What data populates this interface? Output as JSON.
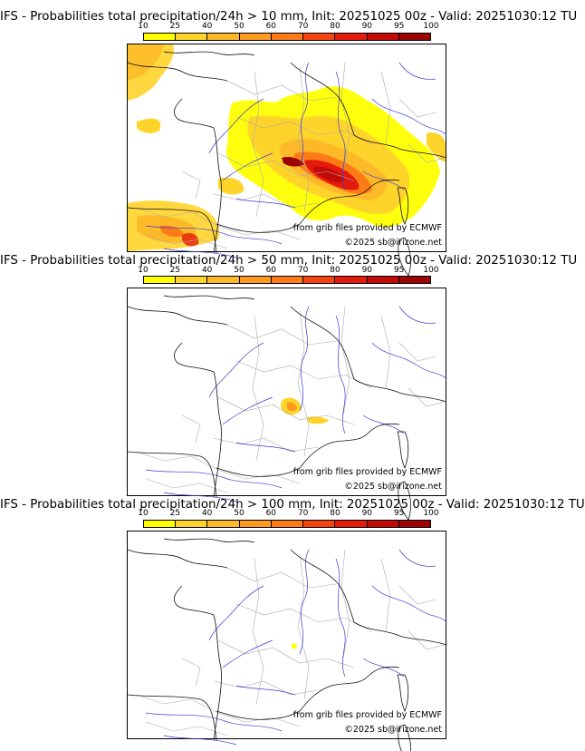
{
  "colors": {
    "colorbar": [
      "#ffff00",
      "#ffd42a",
      "#fdb927",
      "#fd9a1f",
      "#fd7b17",
      "#f5440f",
      "#e41a0b",
      "#c30a06",
      "#9c0303",
      "#6b0000"
    ],
    "country_border": "#000000",
    "region_border": "#999999",
    "river": "#3333cc"
  },
  "colorbar": {
    "ticks": [
      "10",
      "25",
      "40",
      "50",
      "60",
      "70",
      "80",
      "90",
      "95",
      "100"
    ]
  },
  "panels": [
    {
      "title": "IFS - Probabilities total precipitation/24h > 10 mm, Init: 20251025 00z - Valid: 20251030:12 TU",
      "threshold_mm": 10,
      "credit_source": "from grib files provided by ECMWF",
      "credit_copyright": "©2025 sb@irizone.net"
    },
    {
      "title": "IFS - Probabilities total precipitation/24h > 50 mm, Init: 20251025 00z - Valid: 20251030:12 TU",
      "threshold_mm": 50,
      "credit_source": "from grib files provided by ECMWF",
      "credit_copyright": "©2025 sb@irizone.net"
    },
    {
      "title": "IFS - Probabilities total precipitation/24h > 100 mm, Init: 20251025 00z - Valid: 20251030:12 TU",
      "threshold_mm": 100,
      "credit_source": "from grib files provided by ECMWF",
      "credit_copyright": "©2025 sb@irizone.net"
    }
  ]
}
